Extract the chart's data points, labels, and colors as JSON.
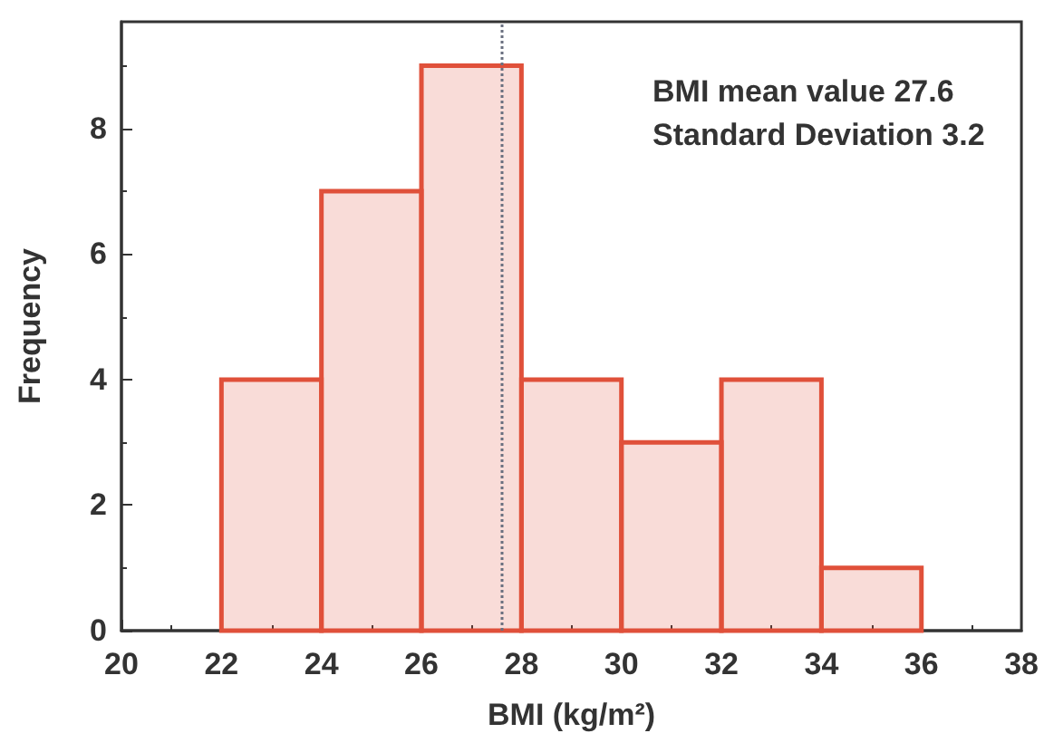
{
  "chart_data": {
    "type": "histogram",
    "xlabel": "BMI (kg/m²)",
    "ylabel": "Frequency",
    "bins": [
      22,
      24,
      26,
      28,
      30,
      32,
      34,
      36
    ],
    "values": [
      4,
      7,
      9,
      4,
      3,
      4,
      1
    ],
    "color": "#e0503a",
    "xlim": [
      20,
      38
    ],
    "xticks": [
      20,
      22,
      24,
      26,
      28,
      30,
      32,
      34,
      36,
      38
    ],
    "ylim": [
      0,
      9.7
    ],
    "yticks": [
      0,
      2,
      4,
      6,
      8
    ],
    "ref_lines": [
      {
        "axis": "x",
        "value": 27.6,
        "color": "#6a7080",
        "line_style": "dotted"
      }
    ],
    "annotations": [
      "BMI mean value 27.6",
      "Standard Deviation 3.2"
    ]
  }
}
